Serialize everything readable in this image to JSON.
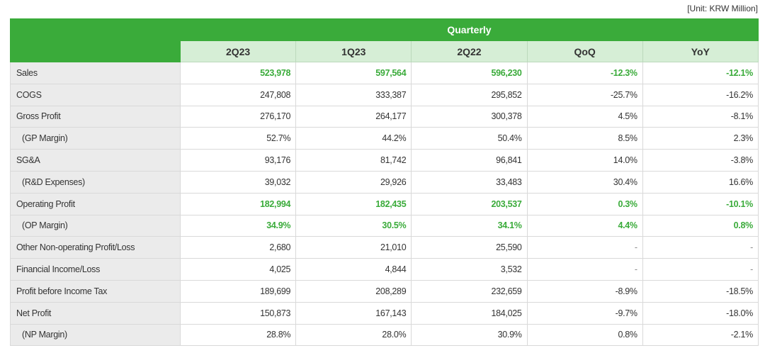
{
  "unit_label": "[Unit: KRW Million]",
  "group_header": "Quarterly",
  "columns": [
    "2Q23",
    "1Q23",
    "2Q22",
    "QoQ",
    "YoY"
  ],
  "highlight_color": "#3aab3a",
  "rows": [
    {
      "label": "Sales",
      "indent": false,
      "highlight": true,
      "values": [
        "523,978",
        "597,564",
        "596,230",
        "-12.3%",
        "-12.1%"
      ]
    },
    {
      "label": "COGS",
      "indent": false,
      "highlight": false,
      "values": [
        "247,808",
        "333,387",
        "295,852",
        "-25.7%",
        "-16.2%"
      ]
    },
    {
      "label": "Gross Profit",
      "indent": false,
      "highlight": false,
      "values": [
        "276,170",
        "264,177",
        "300,378",
        "4.5%",
        "-8.1%"
      ]
    },
    {
      "label": "(GP Margin)",
      "indent": true,
      "highlight": false,
      "values": [
        "52.7%",
        "44.2%",
        "50.4%",
        "8.5%",
        "2.3%"
      ]
    },
    {
      "label": "SG&A",
      "indent": false,
      "highlight": false,
      "values": [
        "93,176",
        "81,742",
        "96,841",
        "14.0%",
        "-3.8%"
      ]
    },
    {
      "label": "(R&D Expenses)",
      "indent": true,
      "highlight": false,
      "values": [
        "39,032",
        "29,926",
        "33,483",
        "30.4%",
        "16.6%"
      ]
    },
    {
      "label": "Operating Profit",
      "indent": false,
      "highlight": true,
      "values": [
        "182,994",
        "182,435",
        "203,537",
        "0.3%",
        "-10.1%"
      ]
    },
    {
      "label": "(OP Margin)",
      "indent": true,
      "highlight": true,
      "values": [
        "34.9%",
        "30.5%",
        "34.1%",
        "4.4%",
        "0.8%"
      ]
    },
    {
      "label": "Other Non-operating Profit/Loss",
      "indent": false,
      "highlight": false,
      "values": [
        "2,680",
        "21,010",
        "25,590",
        "-",
        "-"
      ]
    },
    {
      "label": "Financial Income/Loss",
      "indent": false,
      "highlight": false,
      "values": [
        "4,025",
        "4,844",
        "3,532",
        "-",
        "-"
      ]
    },
    {
      "label": "Profit before Income Tax",
      "indent": false,
      "highlight": false,
      "values": [
        "189,699",
        "208,289",
        "232,659",
        "-8.9%",
        "-18.5%"
      ]
    },
    {
      "label": "Net Profit",
      "indent": false,
      "highlight": false,
      "values": [
        "150,873",
        "167,143",
        "184,025",
        "-9.7%",
        "-18.0%"
      ]
    },
    {
      "label": "(NP Margin)",
      "indent": true,
      "highlight": false,
      "values": [
        "28.8%",
        "28.0%",
        "30.9%",
        "0.8%",
        "-2.1%"
      ]
    }
  ]
}
